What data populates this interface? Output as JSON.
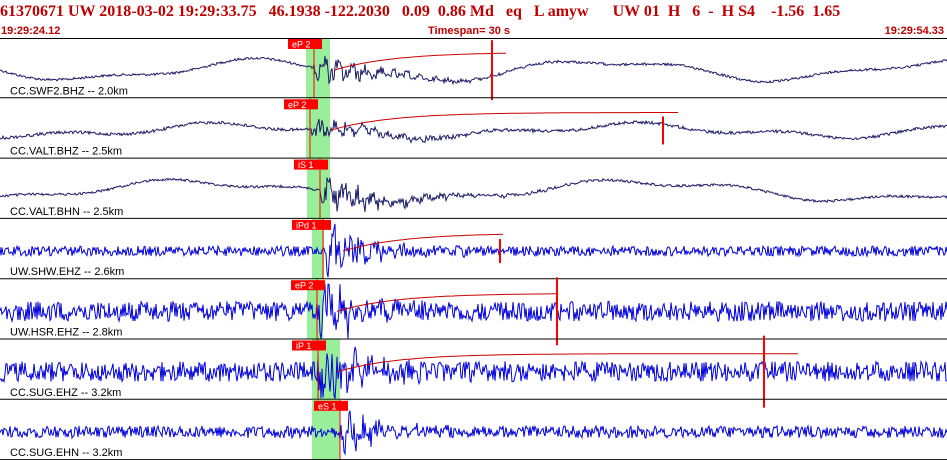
{
  "header": {
    "title": "61370671 UW 2018-03-02 19:29:33.75   46.1938 -122.2030   0.09  0.86 Md   eq   L amyw      UW 01  H   6  -  H S4    -1.56  1.65",
    "start_time": "19:29:24.12",
    "timespan": "Timespan=  30 s",
    "end_time": "19:29:54.33"
  },
  "colors": {
    "header_text": "#c00000",
    "trace_short_period": "#0000dd",
    "trace_broadband": "#1a1a66",
    "pick_marker": "#ff0000",
    "coda_fit": "#cc0000",
    "window_highlight": "#99ee99",
    "separator": "#000000"
  },
  "traces": [
    {
      "label": "CC.SWF2.BHZ -- 2.0km",
      "pick": "eP 2",
      "type": "broadband"
    },
    {
      "label": "CC.VALT.BHZ -- 2.5km",
      "pick": "eP 2",
      "type": "broadband"
    },
    {
      "label": "CC.VALT.BHN -- 2.5km",
      "pick": "iS 1",
      "type": "broadband"
    },
    {
      "label": "UW.SHW.EHZ -- 2.6km",
      "pick": "iPd 1",
      "type": "short"
    },
    {
      "label": "UW.HSR.EHZ -- 2.8km",
      "pick": "eP 2",
      "type": "short"
    },
    {
      "label": "CC.SUG.EHZ -- 3.2km",
      "pick": "iP 1",
      "type": "short"
    },
    {
      "label": "CC.SUG.EHN -- 3.2km",
      "pick": "eS 1",
      "type": "short"
    }
  ]
}
